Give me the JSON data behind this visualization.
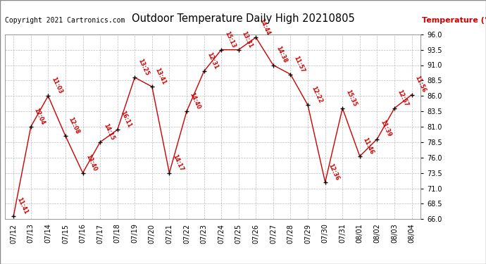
{
  "title": "Outdoor Temperature Daily High 20210805",
  "ylabel": "Temperature (°F)",
  "copyright": "Copyright 2021 Cartronics.com",
  "bg_color": "#ffffff",
  "line_color": "#cc0000",
  "marker_color": "#000000",
  "text_color": "#cc0000",
  "grid_color": "#bbbbbb",
  "ylim": [
    66.0,
    96.0
  ],
  "yticks": [
    66.0,
    68.5,
    71.0,
    73.5,
    76.0,
    78.5,
    81.0,
    83.5,
    86.0,
    88.5,
    91.0,
    93.5,
    96.0
  ],
  "dates": [
    "07/12",
    "07/13",
    "07/14",
    "07/15",
    "07/16",
    "07/17",
    "07/18",
    "07/19",
    "07/20",
    "07/21",
    "07/22",
    "07/23",
    "07/24",
    "07/25",
    "07/26",
    "07/27",
    "07/28",
    "07/29",
    "07/30",
    "07/31",
    "08/01",
    "08/02",
    "08/03",
    "08/04"
  ],
  "temps": [
    66.5,
    81.0,
    86.0,
    79.5,
    73.5,
    78.5,
    80.5,
    89.0,
    87.5,
    73.5,
    83.5,
    90.0,
    93.5,
    93.5,
    95.5,
    91.0,
    89.5,
    84.5,
    72.0,
    84.0,
    76.2,
    79.0,
    84.0,
    86.2
  ],
  "labels": [
    "11:41",
    "12:04",
    "11:03",
    "12:08",
    "13:40",
    "14:15",
    "16:11",
    "13:25",
    "13:41",
    "14:17",
    "14:40",
    "12:31",
    "15:13",
    "13:31",
    "14:44",
    "14:38",
    "11:57",
    "12:22",
    "12:36",
    "15:35",
    "11:46",
    "11:39",
    "12:57",
    "11:56"
  ]
}
